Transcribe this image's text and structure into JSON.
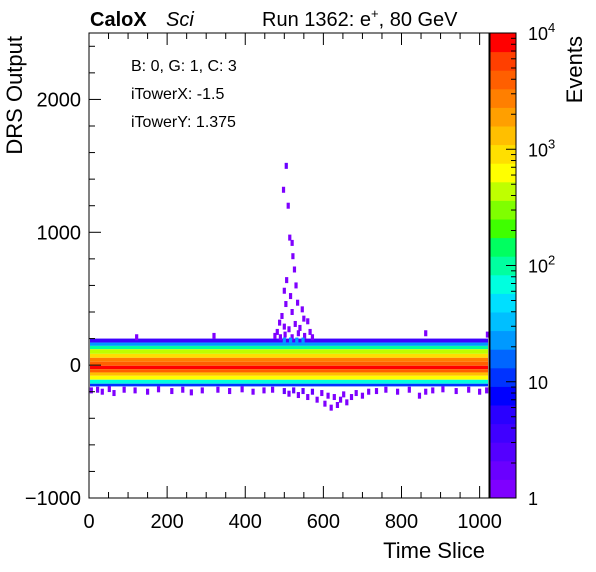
{
  "header": {
    "experiment": "CaloX",
    "tag": "Sci",
    "run_prefix": "Run 1362: e",
    "run_particle_sup": "+",
    "run_suffix": ", 80 GeV"
  },
  "chart_data": {
    "type": "heatmap",
    "xlabel": "Time Slice",
    "ylabel": "DRS Output",
    "zlabel": "Events",
    "xlim": [
      0,
      1024
    ],
    "ylim": [
      -1000,
      2500
    ],
    "zlim": [
      1,
      10000
    ],
    "z_scale": "log",
    "x_ticks": [
      0,
      200,
      400,
      600,
      800,
      1000
    ],
    "y_ticks": [
      -1000,
      0,
      1000,
      2000
    ],
    "x_tick_labels": [
      "0",
      "200",
      "400",
      "600",
      "800",
      "1000"
    ],
    "y_tick_labels": [
      "−1000",
      "0",
      "1000",
      "2000"
    ],
    "z_tick_labels": [
      {
        "base": "1",
        "exp": "",
        "value": 1
      },
      {
        "base": "10",
        "exp": "",
        "value": 10
      },
      {
        "base": "10",
        "exp": "2",
        "value": 100
      },
      {
        "base": "10",
        "exp": "3",
        "value": 1000
      },
      {
        "base": "10",
        "exp": "4",
        "value": 10000
      }
    ],
    "info_box": [
      "B: 0, G: 1, C: 3",
      "iTowerX: -1.5",
      "iTowerY: 1.375"
    ],
    "palette": [
      "#7f00ff",
      "#6a00ff",
      "#5400ff",
      "#3f00ff",
      "#2a00ff",
      "#0000ff",
      "#0033ff",
      "#0066ff",
      "#0099ff",
      "#00bfff",
      "#00dfff",
      "#00ffdf",
      "#00ffa0",
      "#00ff60",
      "#3fff00",
      "#7fff00",
      "#bfff00",
      "#ffff00",
      "#ffdf00",
      "#ffbf00",
      "#ff9f00",
      "#ff7f00",
      "#ff5f00",
      "#ff3f00",
      "#ff0000"
    ],
    "bands": [
      {
        "y0": 170,
        "y1": 200,
        "z": 4
      },
      {
        "y0": 145,
        "y1": 170,
        "z": 20
      },
      {
        "y0": 120,
        "y1": 145,
        "z": 100
      },
      {
        "y0": 85,
        "y1": 120,
        "z": 400
      },
      {
        "y0": 55,
        "y1": 85,
        "z": 1000
      },
      {
        "y0": 25,
        "y1": 55,
        "z": 2500
      },
      {
        "y0": -5,
        "y1": 25,
        "z": 4000
      },
      {
        "y0": -30,
        "y1": -5,
        "z": 9000
      },
      {
        "y0": -55,
        "y1": -30,
        "z": 4000
      },
      {
        "y0": -80,
        "y1": -55,
        "z": 1500
      },
      {
        "y0": -110,
        "y1": -80,
        "z": 600
      },
      {
        "y0": -140,
        "y1": -110,
        "z": 60
      },
      {
        "y0": -160,
        "y1": -140,
        "z": 10
      }
    ],
    "pulse_cells": [
      {
        "x": 505,
        "y": 1500,
        "z": 2
      },
      {
        "x": 498,
        "y": 1320,
        "z": 1
      },
      {
        "x": 510,
        "y": 1200,
        "z": 1
      },
      {
        "x": 514,
        "y": 960,
        "z": 1
      },
      {
        "x": 520,
        "y": 920,
        "z": 1
      },
      {
        "x": 522,
        "y": 820,
        "z": 1
      },
      {
        "x": 526,
        "y": 720,
        "z": 1
      },
      {
        "x": 506,
        "y": 640,
        "z": 1
      },
      {
        "x": 530,
        "y": 600,
        "z": 1
      },
      {
        "x": 500,
        "y": 560,
        "z": 1
      },
      {
        "x": 516,
        "y": 520,
        "z": 1
      },
      {
        "x": 534,
        "y": 470,
        "z": 1
      },
      {
        "x": 504,
        "y": 460,
        "z": 1
      },
      {
        "x": 546,
        "y": 420,
        "z": 1
      },
      {
        "x": 520,
        "y": 400,
        "z": 1
      },
      {
        "x": 494,
        "y": 370,
        "z": 1
      },
      {
        "x": 550,
        "y": 350,
        "z": 1
      },
      {
        "x": 488,
        "y": 320,
        "z": 1
      },
      {
        "x": 560,
        "y": 330,
        "z": 1
      },
      {
        "x": 528,
        "y": 310,
        "z": 1
      },
      {
        "x": 500,
        "y": 290,
        "z": 1
      },
      {
        "x": 540,
        "y": 280,
        "z": 1
      },
      {
        "x": 512,
        "y": 270,
        "z": 1
      },
      {
        "x": 482,
        "y": 250,
        "z": 1
      },
      {
        "x": 566,
        "y": 250,
        "z": 1
      },
      {
        "x": 536,
        "y": 240,
        "z": 1
      },
      {
        "x": 502,
        "y": 230,
        "z": 1
      },
      {
        "x": 476,
        "y": 220,
        "z": 1
      },
      {
        "x": 552,
        "y": 220,
        "z": 1
      },
      {
        "x": 520,
        "y": 210,
        "z": 1
      },
      {
        "x": 490,
        "y": 210,
        "z": 1
      },
      {
        "x": 572,
        "y": 210,
        "z": 1
      },
      {
        "x": 500,
        "y": 185,
        "z": 20
      },
      {
        "x": 516,
        "y": 185,
        "z": 20
      },
      {
        "x": 532,
        "y": 185,
        "z": 20
      },
      {
        "x": 548,
        "y": 185,
        "z": 20
      }
    ],
    "negative_cells": [
      {
        "x": 6,
        "y": -190,
        "z": 1
      },
      {
        "x": 22,
        "y": -185,
        "z": 1
      },
      {
        "x": 34,
        "y": -200,
        "z": 1
      },
      {
        "x": 52,
        "y": -180,
        "z": 1
      },
      {
        "x": 64,
        "y": -210,
        "z": 1
      },
      {
        "x": 90,
        "y": -185,
        "z": 1
      },
      {
        "x": 118,
        "y": -190,
        "z": 1
      },
      {
        "x": 150,
        "y": -200,
        "z": 1
      },
      {
        "x": 178,
        "y": -182,
        "z": 1
      },
      {
        "x": 212,
        "y": -195,
        "z": 1
      },
      {
        "x": 240,
        "y": -185,
        "z": 1
      },
      {
        "x": 262,
        "y": -205,
        "z": 1
      },
      {
        "x": 290,
        "y": -190,
        "z": 1
      },
      {
        "x": 330,
        "y": -185,
        "z": 1
      },
      {
        "x": 360,
        "y": -195,
        "z": 1
      },
      {
        "x": 392,
        "y": -182,
        "z": 1
      },
      {
        "x": 420,
        "y": -200,
        "z": 1
      },
      {
        "x": 448,
        "y": -190,
        "z": 1
      },
      {
        "x": 470,
        "y": -185,
        "z": 1
      },
      {
        "x": 500,
        "y": -195,
        "z": 2
      },
      {
        "x": 512,
        "y": -215,
        "z": 1
      },
      {
        "x": 524,
        "y": -190,
        "z": 2
      },
      {
        "x": 536,
        "y": -225,
        "z": 1
      },
      {
        "x": 548,
        "y": -195,
        "z": 2
      },
      {
        "x": 560,
        "y": -240,
        "z": 1
      },
      {
        "x": 572,
        "y": -200,
        "z": 2
      },
      {
        "x": 584,
        "y": -260,
        "z": 1
      },
      {
        "x": 596,
        "y": -210,
        "z": 1
      },
      {
        "x": 604,
        "y": -290,
        "z": 1
      },
      {
        "x": 612,
        "y": -230,
        "z": 1
      },
      {
        "x": 620,
        "y": -320,
        "z": 1
      },
      {
        "x": 628,
        "y": -240,
        "z": 1
      },
      {
        "x": 636,
        "y": -300,
        "z": 1
      },
      {
        "x": 644,
        "y": -260,
        "z": 1
      },
      {
        "x": 652,
        "y": -220,
        "z": 1
      },
      {
        "x": 660,
        "y": -280,
        "z": 1
      },
      {
        "x": 672,
        "y": -240,
        "z": 1
      },
      {
        "x": 684,
        "y": -210,
        "z": 1
      },
      {
        "x": 700,
        "y": -230,
        "z": 1
      },
      {
        "x": 716,
        "y": -200,
        "z": 1
      },
      {
        "x": 736,
        "y": -195,
        "z": 1
      },
      {
        "x": 760,
        "y": -185,
        "z": 1
      },
      {
        "x": 790,
        "y": -200,
        "z": 1
      },
      {
        "x": 820,
        "y": -185,
        "z": 1
      },
      {
        "x": 846,
        "y": -230,
        "z": 1
      },
      {
        "x": 862,
        "y": -200,
        "z": 1
      },
      {
        "x": 880,
        "y": -190,
        "z": 1
      },
      {
        "x": 906,
        "y": -182,
        "z": 1
      },
      {
        "x": 940,
        "y": -195,
        "z": 1
      },
      {
        "x": 972,
        "y": -185,
        "z": 1
      },
      {
        "x": 1000,
        "y": -200,
        "z": 1
      },
      {
        "x": 1018,
        "y": -190,
        "z": 1
      }
    ],
    "sparse_upper_cells": [
      {
        "x": 320,
        "y": 220,
        "z": 1
      },
      {
        "x": 862,
        "y": 240,
        "z": 1
      },
      {
        "x": 1020,
        "y": 230,
        "z": 1
      },
      {
        "x": 122,
        "y": 210,
        "z": 1
      }
    ]
  }
}
